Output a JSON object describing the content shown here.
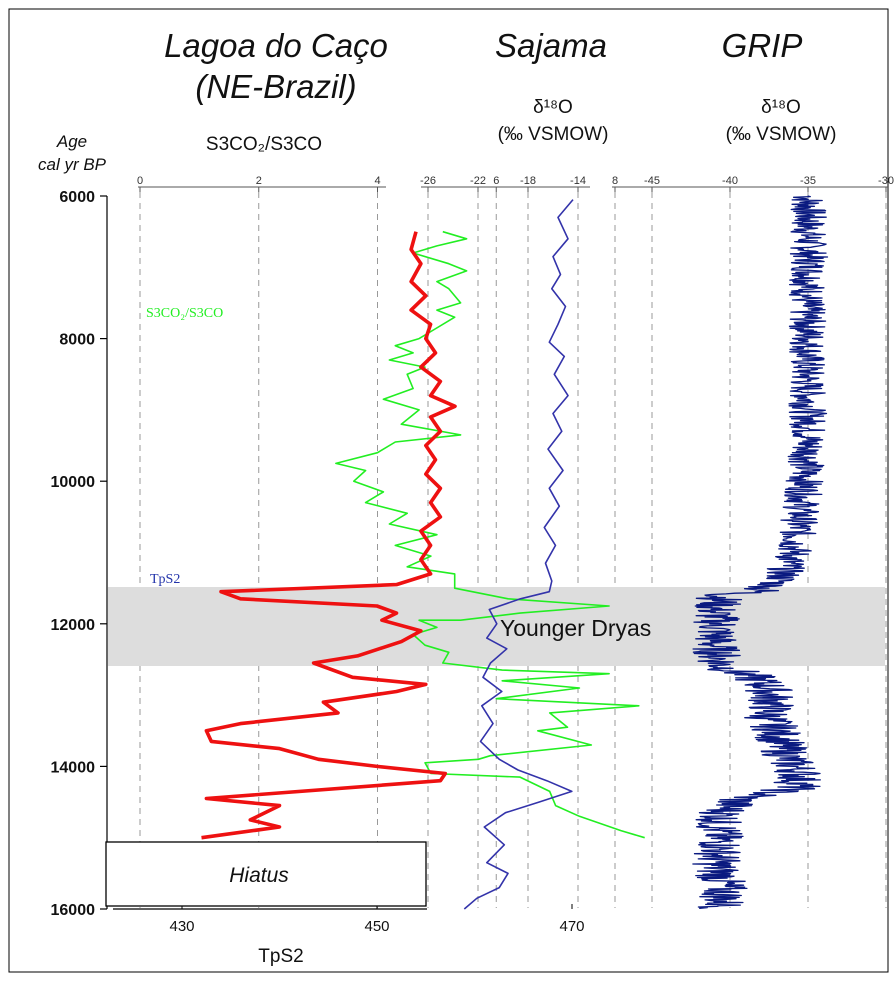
{
  "header": {
    "site_title_1": "Lagoa do Caço",
    "site_title_2": "(NE-Brazil)",
    "sajama_title": "Sajama",
    "grip_title": "GRIP",
    "age_label_1": "Age",
    "age_label_2": "cal yr BP",
    "ratio_label": "S3CO₂/S3CO",
    "d18o_label": "δ¹⁸O",
    "vsmow_label": "(‰ VSMOW)"
  },
  "annotations": {
    "green_label": "S3CO₂/S3CO",
    "red_label": "TpS2",
    "band_label": "Younger Dryas",
    "hiatus_label": "Hiatus",
    "bottom_axis_label": "TpS2"
  },
  "colors": {
    "ratio_series": "#22ee22",
    "tps2_series": "#ee1111",
    "sajama_series": "#3333aa",
    "grip_series": "#0a1a80",
    "band": "#dddddd"
  },
  "chart_data": [
    {
      "type": "line",
      "panel": "Lagoa do Caço",
      "y_axis": {
        "label": "Age cal yr BP",
        "range": [
          6000,
          16000
        ],
        "ticks": [
          6000,
          8000,
          10000,
          12000,
          14000,
          16000
        ],
        "inverted": true
      },
      "top_axis": {
        "label": "S3CO₂/S3CO",
        "range": [
          0,
          8
        ],
        "ticks": [
          0,
          2,
          4,
          6,
          8
        ]
      },
      "bottom_axis": {
        "label": "TpS2",
        "range": [
          414,
          477
        ],
        "ticks": [
          430,
          450,
          470
        ]
      },
      "grid": "vertical dashed",
      "series": [
        {
          "name": "S3CO₂/S3CO",
          "axis": "top",
          "points": [
            [
              5.1,
              6500
            ],
            [
              5.5,
              6600
            ],
            [
              5.0,
              6700
            ],
            [
              4.6,
              6800
            ],
            [
              5.2,
              6950
            ],
            [
              5.5,
              7050
            ],
            [
              5.0,
              7200
            ],
            [
              5.2,
              7300
            ],
            [
              5.4,
              7500
            ],
            [
              5.0,
              7600
            ],
            [
              5.3,
              7700
            ],
            [
              4.9,
              7900
            ],
            [
              4.7,
              8000
            ],
            [
              4.3,
              8100
            ],
            [
              4.6,
              8200
            ],
            [
              4.2,
              8300
            ],
            [
              4.8,
              8400
            ],
            [
              4.5,
              8500
            ],
            [
              4.6,
              8700
            ],
            [
              4.1,
              8850
            ],
            [
              4.7,
              9000
            ],
            [
              4.4,
              9200
            ],
            [
              5.4,
              9350
            ],
            [
              4.3,
              9450
            ],
            [
              4.0,
              9600
            ],
            [
              3.3,
              9750
            ],
            [
              3.8,
              9850
            ],
            [
              3.6,
              10000
            ],
            [
              4.1,
              10150
            ],
            [
              3.8,
              10300
            ],
            [
              4.5,
              10450
            ],
            [
              4.2,
              10600
            ],
            [
              5.0,
              10750
            ],
            [
              4.3,
              10900
            ],
            [
              4.9,
              11050
            ],
            [
              4.5,
              11200
            ],
            [
              5.3,
              11300
            ],
            [
              5.3,
              11500
            ],
            [
              6.2,
              11650
            ],
            [
              7.9,
              11750
            ],
            [
              6.4,
              11850
            ],
            [
              5.4,
              11950
            ],
            [
              4.7,
              11950
            ],
            [
              5.0,
              12050
            ],
            [
              4.6,
              12150
            ],
            [
              4.8,
              12300
            ],
            [
              5.2,
              12400
            ],
            [
              5.1,
              12550
            ],
            [
              6.1,
              12650
            ],
            [
              7.9,
              12700
            ],
            [
              6.1,
              12800
            ],
            [
              7.4,
              12900
            ],
            [
              6.0,
              13050
            ],
            [
              8.4,
              13150
            ],
            [
              6.9,
              13250
            ],
            [
              7.2,
              13450
            ],
            [
              6.7,
              13500
            ],
            [
              7.6,
              13700
            ],
            [
              5.9,
              13850
            ],
            [
              5.7,
              13900
            ],
            [
              4.8,
              13950
            ],
            [
              4.9,
              14100
            ],
            [
              6.4,
              14150
            ],
            [
              6.9,
              14350
            ],
            [
              7.0,
              14550
            ],
            [
              7.4,
              14700
            ],
            [
              8.1,
              14900
            ],
            [
              8.5,
              15000
            ]
          ]
        },
        {
          "name": "TpS2",
          "axis": "bottom",
          "points": [
            [
              454,
              6500
            ],
            [
              453.5,
              6750
            ],
            [
              454.5,
              6950
            ],
            [
              453.5,
              7200
            ],
            [
              455,
              7400
            ],
            [
              453.5,
              7600
            ],
            [
              455.5,
              7800
            ],
            [
              455,
              8000
            ],
            [
              456,
              8200
            ],
            [
              454.5,
              8400
            ],
            [
              456.5,
              8600
            ],
            [
              455.5,
              8800
            ],
            [
              458,
              8950
            ],
            [
              455.5,
              9100
            ],
            [
              456.5,
              9300
            ],
            [
              455,
              9500
            ],
            [
              456,
              9700
            ],
            [
              455,
              9900
            ],
            [
              456.5,
              10100
            ],
            [
              455.5,
              10300
            ],
            [
              456.5,
              10500
            ],
            [
              454.5,
              10700
            ],
            [
              455.5,
              10900
            ],
            [
              454.5,
              11100
            ],
            [
              455.5,
              11300
            ],
            [
              452,
              11450
            ],
            [
              434,
              11550
            ],
            [
              436,
              11650
            ],
            [
              450,
              11750
            ],
            [
              452,
              11850
            ],
            [
              450.5,
              11950
            ],
            [
              454.5,
              12100
            ],
            [
              452.5,
              12250
            ],
            [
              448,
              12450
            ],
            [
              443.5,
              12550
            ],
            [
              447.5,
              12750
            ],
            [
              455,
              12850
            ],
            [
              452,
              12950
            ],
            [
              444.5,
              13100
            ],
            [
              446,
              13250
            ],
            [
              436,
              13400
            ],
            [
              432.5,
              13500
            ],
            [
              433,
              13650
            ],
            [
              440,
              13750
            ],
            [
              444,
              13900
            ],
            [
              450,
              14000
            ],
            [
              457,
              14100
            ],
            [
              456.5,
              14200
            ],
            [
              432.5,
              14450
            ],
            [
              440,
              14550
            ],
            [
              437,
              14750
            ],
            [
              440,
              14850
            ],
            [
              432,
              15000
            ]
          ]
        }
      ]
    },
    {
      "type": "line",
      "panel": "Sajama",
      "x_axis": {
        "label": "δ¹⁸O (‰ VSMOW)",
        "range": [
          -26,
          -14
        ],
        "ticks": [
          -26,
          -22,
          -18,
          -14
        ]
      },
      "y_axis": {
        "range": [
          6000,
          16000
        ],
        "inverted": true
      },
      "grid": "vertical dashed",
      "series": [
        {
          "name": "Sajama",
          "points": [
            [
              -14.4,
              6050
            ],
            [
              -15.6,
              6300
            ],
            [
              -14.8,
              6600
            ],
            [
              -16.0,
              6850
            ],
            [
              -15.4,
              7100
            ],
            [
              -16.1,
              7300
            ],
            [
              -15.0,
              7550
            ],
            [
              -15.6,
              7800
            ],
            [
              -16.3,
              8050
            ],
            [
              -15.1,
              8250
            ],
            [
              -15.9,
              8500
            ],
            [
              -14.8,
              8800
            ],
            [
              -16.0,
              9050
            ],
            [
              -15.3,
              9300
            ],
            [
              -16.4,
              9550
            ],
            [
              -15.2,
              9850
            ],
            [
              -16.3,
              10100
            ],
            [
              -15.5,
              10350
            ],
            [
              -16.7,
              10650
            ],
            [
              -15.8,
              10900
            ],
            [
              -16.6,
              11150
            ],
            [
              -16.1,
              11400
            ],
            [
              -16.3,
              11550
            ],
            [
              -18.6,
              11650
            ],
            [
              -21.1,
              11800
            ],
            [
              -20.5,
              12000
            ],
            [
              -21.3,
              12200
            ],
            [
              -19.7,
              12350
            ],
            [
              -21.0,
              12550
            ],
            [
              -21.6,
              12750
            ],
            [
              -20.1,
              12950
            ],
            [
              -21.7,
              13150
            ],
            [
              -20.8,
              13400
            ],
            [
              -21.8,
              13650
            ],
            [
              -20.3,
              13900
            ],
            [
              -18.8,
              14050
            ],
            [
              -16.5,
              14200
            ],
            [
              -14.5,
              14350
            ],
            [
              -17.1,
              14500
            ],
            [
              -19.8,
              14650
            ],
            [
              -21.5,
              14850
            ],
            [
              -19.9,
              15100
            ],
            [
              -21.3,
              15350
            ],
            [
              -19.6,
              15500
            ],
            [
              -20.3,
              15700
            ],
            [
              -22.1,
              15850
            ],
            [
              -23.1,
              16000
            ]
          ]
        }
      ]
    },
    {
      "type": "line",
      "panel": "GRIP",
      "x_axis": {
        "label": "δ¹⁸O (‰ VSMOW)",
        "range": [
          -45,
          -30
        ],
        "ticks": [
          -45,
          -40,
          -35,
          -30
        ]
      },
      "y_axis": {
        "range": [
          6000,
          16000
        ],
        "inverted": true
      },
      "grid": "vertical dashed",
      "series": [
        {
          "name": "GRIP",
          "noise": 0.6,
          "points": [
            [
              -35,
              6000
            ],
            [
              -35,
              6500
            ],
            [
              -34.9,
              7000
            ],
            [
              -35.1,
              7500
            ],
            [
              -35,
              8000
            ],
            [
              -35.1,
              8500
            ],
            [
              -35,
              9000
            ],
            [
              -35,
              9500
            ],
            [
              -35.2,
              10000
            ],
            [
              -35.5,
              10500
            ],
            [
              -35.9,
              11000
            ],
            [
              -36.8,
              11400
            ],
            [
              -38.3,
              11550
            ],
            [
              -40.5,
              11600
            ],
            [
              -41.0,
              11800
            ],
            [
              -40.8,
              12000
            ],
            [
              -41.0,
              12300
            ],
            [
              -40.5,
              12600
            ],
            [
              -38.5,
              12750
            ],
            [
              -37.5,
              12900
            ],
            [
              -37.3,
              13100
            ],
            [
              -37.6,
              13300
            ],
            [
              -37.0,
              13500
            ],
            [
              -36.7,
              13700
            ],
            [
              -36.3,
              13900
            ],
            [
              -35.5,
              14100
            ],
            [
              -35.7,
              14300
            ],
            [
              -39.3,
              14450
            ],
            [
              -40.3,
              14600
            ],
            [
              -40.8,
              14800
            ],
            [
              -40.6,
              15100
            ],
            [
              -40.9,
              15400
            ],
            [
              -40.4,
              15700
            ],
            [
              -40.5,
              16000
            ]
          ]
        }
      ]
    }
  ]
}
